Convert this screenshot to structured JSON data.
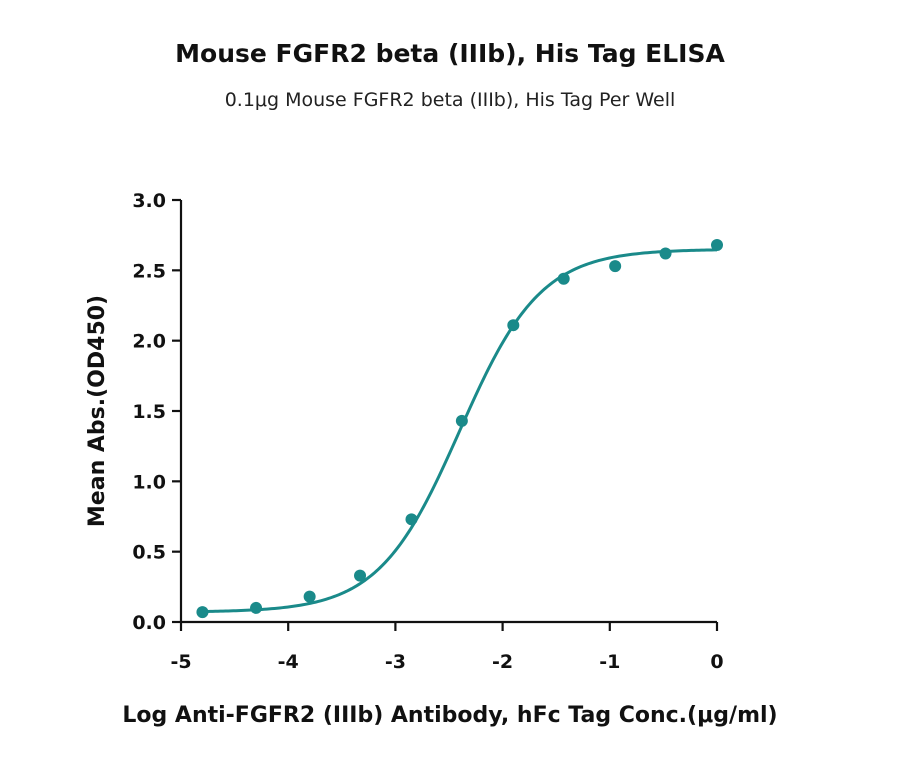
{
  "chart_data": {
    "type": "scatter",
    "title": "Mouse FGFR2 beta (IIIb), His Tag ELISA",
    "subtitle": "0.1μg Mouse FGFR2 beta (IIIb), His Tag Per Well",
    "xlabel": "Log Anti-FGFR2 (IIIb) Antibody, hFc Tag Conc.(μg/ml)",
    "ylabel": "Mean Abs.(OD450)",
    "xlim": [
      -5,
      0
    ],
    "ylim": [
      0,
      3
    ],
    "x_ticks": [
      -5,
      -4,
      -3,
      -2,
      -1,
      0
    ],
    "x_tick_labels": [
      "-5",
      "-4",
      "-3",
      "-2",
      "-1",
      "0"
    ],
    "y_ticks": [
      0,
      0.5,
      1,
      1.5,
      2,
      2.5,
      3
    ],
    "y_tick_labels": [
      "0.0",
      "0.5",
      "1.0",
      "1.5",
      "2.0",
      "2.5",
      "3.0"
    ],
    "color": "#1a8a8a",
    "grid": false,
    "legend": "none",
    "series": [
      {
        "points": [
          {
            "x": -4.8,
            "y": 0.07
          },
          {
            "x": -4.3,
            "y": 0.1
          },
          {
            "x": -3.8,
            "y": 0.18
          },
          {
            "x": -3.33,
            "y": 0.33
          },
          {
            "x": -2.85,
            "y": 0.73
          },
          {
            "x": -2.38,
            "y": 1.43
          },
          {
            "x": -1.9,
            "y": 2.11
          },
          {
            "x": -1.43,
            "y": 2.44
          },
          {
            "x": -0.95,
            "y": 2.53
          },
          {
            "x": -0.48,
            "y": 2.62
          },
          {
            "x": 0.0,
            "y": 2.68
          }
        ],
        "fit": {
          "model": "4PL",
          "bottom": 0.07,
          "top": 2.65,
          "log_ec50": -2.4,
          "hill": 1.15
        }
      }
    ]
  }
}
